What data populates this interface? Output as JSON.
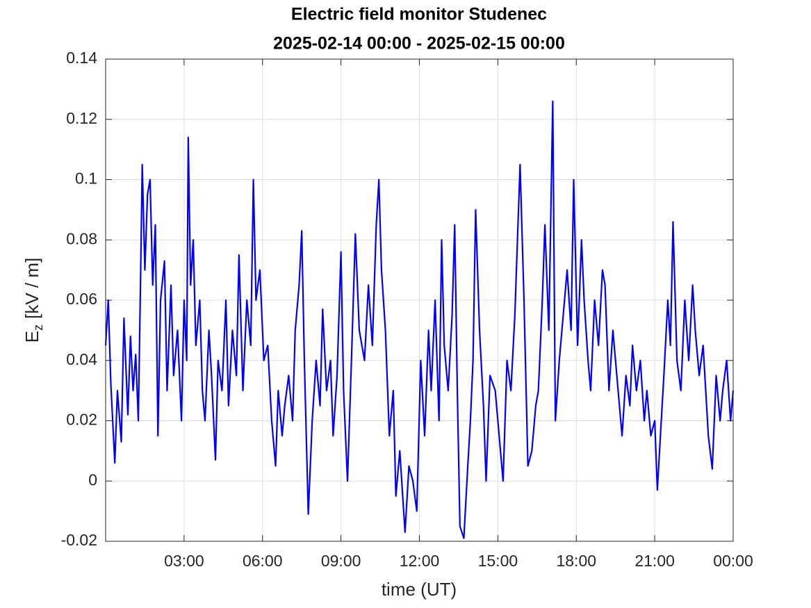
{
  "chart_data": {
    "type": "line",
    "title": "Electric field monitor Studenec",
    "subtitle": "2025-02-14 00:00 - 2025-02-15 00:00",
    "x_label": "time (UT)",
    "y_label": {
      "base": "E",
      "subscript": "z",
      "unit": "[kV / m]"
    },
    "xlim": [
      0,
      24
    ],
    "xticks": [
      {
        "value": 3,
        "label": "03:00"
      },
      {
        "value": 6,
        "label": "06:00"
      },
      {
        "value": 9,
        "label": "09:00"
      },
      {
        "value": 12,
        "label": "12:00"
      },
      {
        "value": 15,
        "label": "15:00"
      },
      {
        "value": 18,
        "label": "18:00"
      },
      {
        "value": 21,
        "label": "21:00"
      },
      {
        "value": 24,
        "label": "00:00"
      }
    ],
    "ylim": [
      -0.02,
      0.14
    ],
    "yticks": [
      -0.02,
      0,
      0.02,
      0.04,
      0.06,
      0.08,
      0.1,
      0.12,
      0.14
    ],
    "grid": true,
    "color": "#0000ff",
    "x": [
      0,
      0.1,
      0.2,
      0.35,
      0.45,
      0.6,
      0.7,
      0.85,
      0.95,
      1.05,
      1.15,
      1.25,
      1.35,
      1.4,
      1.5,
      1.6,
      1.7,
      1.8,
      1.9,
      2.0,
      2.1,
      2.25,
      2.35,
      2.5,
      2.6,
      2.75,
      2.9,
      3.0,
      3.1,
      3.16,
      3.25,
      3.35,
      3.45,
      3.6,
      3.7,
      3.8,
      3.95,
      4.05,
      4.2,
      4.3,
      4.45,
      4.6,
      4.7,
      4.85,
      5.0,
      5.1,
      5.25,
      5.4,
      5.55,
      5.65,
      5.75,
      5.9,
      6.05,
      6.2,
      6.35,
      6.5,
      6.6,
      6.75,
      6.85,
      7.0,
      7.15,
      7.25,
      7.4,
      7.5,
      7.6,
      7.75,
      7.9,
      8.05,
      8.2,
      8.3,
      8.45,
      8.6,
      8.7,
      8.85,
      9.0,
      9.1,
      9.25,
      9.4,
      9.55,
      9.7,
      9.9,
      10.05,
      10.2,
      10.35,
      10.45,
      10.55,
      10.7,
      10.85,
      11.0,
      11.1,
      11.25,
      11.45,
      11.6,
      11.75,
      11.9,
      12.05,
      12.2,
      12.35,
      12.45,
      12.6,
      12.75,
      12.85,
      12.95,
      13.1,
      13.25,
      13.35,
      13.45,
      13.55,
      13.7,
      13.85,
      13.95,
      14.05,
      14.15,
      14.3,
      14.45,
      14.55,
      14.7,
      14.9,
      15.05,
      15.2,
      15.35,
      15.5,
      15.65,
      15.75,
      15.85,
      16.0,
      16.15,
      16.3,
      16.45,
      16.55,
      16.7,
      16.8,
      16.95,
      17.1,
      17.2,
      17.35,
      17.5,
      17.65,
      17.8,
      17.9,
      18.05,
      18.2,
      18.3,
      18.45,
      18.55,
      18.7,
      18.85,
      19.0,
      19.1,
      19.25,
      19.4,
      19.5,
      19.65,
      19.75,
      19.9,
      20.05,
      20.15,
      20.3,
      20.45,
      20.6,
      20.7,
      20.85,
      21.0,
      21.1,
      21.25,
      21.35,
      21.5,
      21.6,
      21.7,
      21.85,
      22.0,
      22.15,
      22.3,
      22.45,
      22.55,
      22.7,
      22.85,
      23.05,
      23.2,
      23.35,
      23.5,
      23.6,
      23.75,
      23.9,
      24.0
    ],
    "values": [
      0.045,
      0.06,
      0.032,
      0.006,
      0.03,
      0.013,
      0.054,
      0.022,
      0.048,
      0.03,
      0.042,
      0.02,
      0.075,
      0.105,
      0.07,
      0.095,
      0.1,
      0.065,
      0.085,
      0.015,
      0.06,
      0.073,
      0.03,
      0.065,
      0.035,
      0.05,
      0.02,
      0.06,
      0.04,
      0.114,
      0.065,
      0.08,
      0.045,
      0.06,
      0.03,
      0.02,
      0.05,
      0.035,
      0.007,
      0.04,
      0.03,
      0.06,
      0.025,
      0.05,
      0.035,
      0.075,
      0.03,
      0.06,
      0.045,
      0.1,
      0.06,
      0.07,
      0.04,
      0.045,
      0.02,
      0.005,
      0.03,
      0.015,
      0.025,
      0.035,
      0.02,
      0.05,
      0.065,
      0.083,
      0.04,
      -0.011,
      0.02,
      0.04,
      0.025,
      0.057,
      0.03,
      0.04,
      0.015,
      0.035,
      0.076,
      0.03,
      0.0,
      0.04,
      0.082,
      0.05,
      0.04,
      0.065,
      0.045,
      0.085,
      0.1,
      0.07,
      0.05,
      0.015,
      0.03,
      -0.005,
      0.01,
      -0.017,
      0.005,
      0.0,
      -0.01,
      0.04,
      0.015,
      0.05,
      0.03,
      0.06,
      0.02,
      0.08,
      0.045,
      0.03,
      0.055,
      0.085,
      0.03,
      -0.015,
      -0.019,
      0.005,
      0.02,
      0.04,
      0.09,
      0.05,
      0.025,
      0.0,
      0.035,
      0.03,
      0.015,
      0.0,
      0.04,
      0.03,
      0.055,
      0.08,
      0.105,
      0.06,
      0.005,
      0.01,
      0.025,
      0.03,
      0.06,
      0.085,
      0.05,
      0.126,
      0.02,
      0.04,
      0.055,
      0.07,
      0.05,
      0.1,
      0.045,
      0.08,
      0.06,
      0.04,
      0.03,
      0.06,
      0.045,
      0.07,
      0.065,
      0.03,
      0.05,
      0.04,
      0.025,
      0.015,
      0.035,
      0.025,
      0.045,
      0.03,
      0.04,
      0.02,
      0.03,
      0.015,
      0.02,
      -0.003,
      0.02,
      0.035,
      0.06,
      0.045,
      0.086,
      0.04,
      0.03,
      0.06,
      0.04,
      0.065,
      0.05,
      0.035,
      0.045,
      0.015,
      0.004,
      0.035,
      0.02,
      0.03,
      0.04,
      0.02,
      0.03
    ]
  }
}
